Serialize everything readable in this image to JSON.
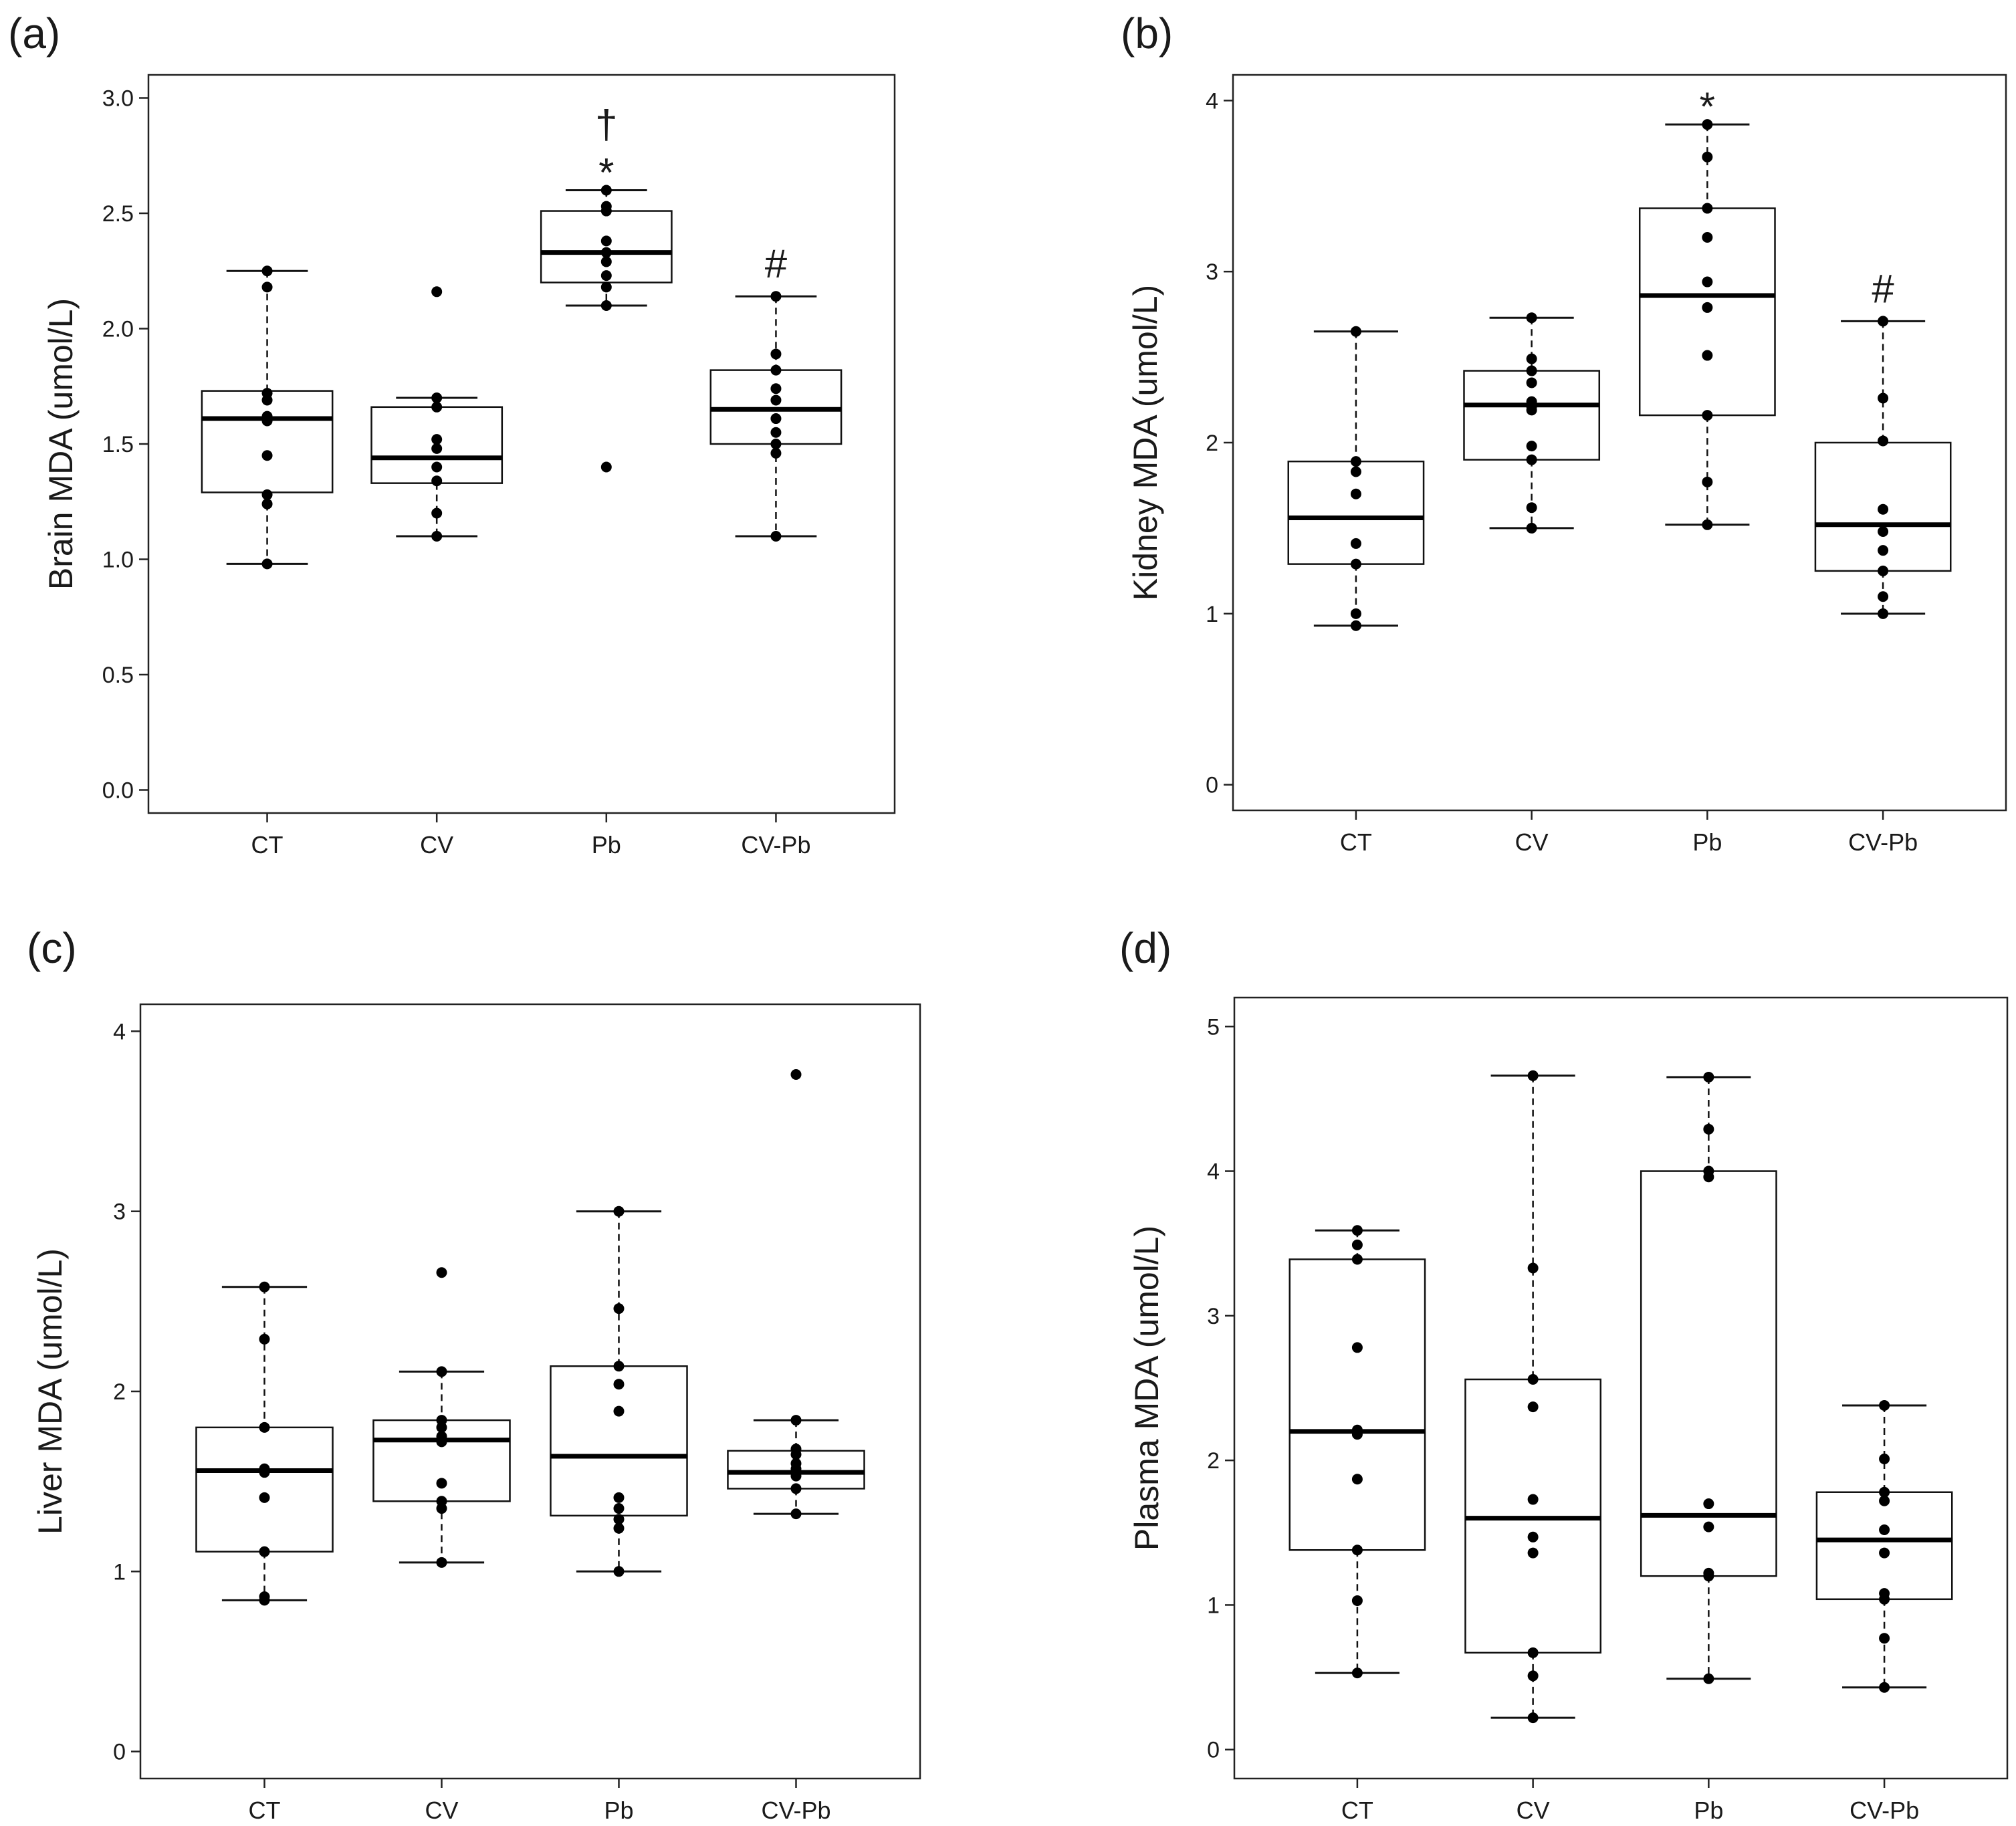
{
  "chart_data": [
    {
      "type": "box",
      "panel_label": "(a)",
      "ylabel": "Brain MDA (umol/L)",
      "ylim": [
        -0.1,
        3.1
      ],
      "yticks": [
        0.0,
        0.5,
        1.0,
        1.5,
        2.0,
        2.5,
        3.0
      ],
      "ytick_labels": [
        "0.0",
        "0.5",
        "1.0",
        "1.5",
        "2.0",
        "2.5",
        "3.0"
      ],
      "categories": [
        "CT",
        "CV",
        "Pb",
        "CV-Pb"
      ],
      "groups": [
        {
          "name": "CT",
          "q1": 1.29,
          "median": 1.61,
          "q3": 1.73,
          "whisker_low": 0.98,
          "whisker_high": 2.25,
          "points": [
            2.25,
            2.18,
            1.72,
            1.69,
            1.62,
            1.6,
            1.45,
            1.28,
            1.24,
            0.98
          ],
          "annotation": []
        },
        {
          "name": "CV",
          "q1": 1.33,
          "median": 1.44,
          "q3": 1.66,
          "whisker_low": 1.1,
          "whisker_high": 1.7,
          "points": [
            2.16,
            1.7,
            1.66,
            1.52,
            1.48,
            1.4,
            1.34,
            1.2,
            1.1
          ],
          "annotation": []
        },
        {
          "name": "Pb",
          "q1": 2.2,
          "median": 2.33,
          "q3": 2.51,
          "whisker_low": 2.1,
          "whisker_high": 2.6,
          "points": [
            2.6,
            2.53,
            2.51,
            2.38,
            2.33,
            2.29,
            2.23,
            2.18,
            2.1,
            1.4
          ],
          "annotation": [
            "†",
            "*"
          ]
        },
        {
          "name": "CV-Pb",
          "q1": 1.5,
          "median": 1.65,
          "q3": 1.82,
          "whisker_low": 1.1,
          "whisker_high": 2.14,
          "points": [
            2.14,
            1.89,
            1.82,
            1.74,
            1.69,
            1.61,
            1.55,
            1.5,
            1.46,
            1.1
          ],
          "annotation": [
            "#"
          ]
        }
      ]
    },
    {
      "type": "box",
      "panel_label": "(b)",
      "ylabel": "Kidney MDA (umol/L)",
      "ylim": [
        -0.15,
        4.15
      ],
      "yticks": [
        0,
        1,
        2,
        3,
        4
      ],
      "ytick_labels": [
        "0",
        "1",
        "2",
        "3",
        "4"
      ],
      "categories": [
        "CT",
        "CV",
        "Pb",
        "CV-Pb"
      ],
      "groups": [
        {
          "name": "CT",
          "q1": 1.29,
          "median": 1.56,
          "q3": 1.89,
          "whisker_low": 0.93,
          "whisker_high": 2.65,
          "points": [
            2.65,
            1.89,
            1.83,
            1.7,
            1.41,
            1.29,
            1.0,
            0.93
          ],
          "annotation": []
        },
        {
          "name": "CV",
          "q1": 1.9,
          "median": 2.22,
          "q3": 2.42,
          "whisker_low": 1.5,
          "whisker_high": 2.73,
          "points": [
            2.73,
            2.49,
            2.42,
            2.35,
            2.24,
            2.21,
            2.19,
            1.98,
            1.9,
            1.62,
            1.5
          ],
          "annotation": []
        },
        {
          "name": "Pb",
          "q1": 2.16,
          "median": 2.86,
          "q3": 3.37,
          "whisker_low": 1.52,
          "whisker_high": 3.86,
          "points": [
            3.86,
            3.67,
            3.37,
            3.2,
            2.94,
            2.79,
            2.51,
            2.16,
            1.77,
            1.52
          ],
          "annotation": [
            "*"
          ]
        },
        {
          "name": "CV-Pb",
          "q1": 1.25,
          "median": 1.52,
          "q3": 2.0,
          "whisker_low": 1.0,
          "whisker_high": 2.71,
          "points": [
            2.71,
            2.26,
            2.01,
            1.61,
            1.48,
            1.37,
            1.25,
            1.1,
            1.0
          ],
          "annotation": [
            "#"
          ]
        }
      ]
    },
    {
      "type": "box",
      "panel_label": "(c)",
      "ylabel": "Liver MDA (umol/L)",
      "ylim": [
        -0.15,
        4.15
      ],
      "yticks": [
        0,
        1,
        2,
        3,
        4
      ],
      "ytick_labels": [
        "0",
        "1",
        "2",
        "3",
        "4"
      ],
      "categories": [
        "CT",
        "CV",
        "Pb",
        "CV-Pb"
      ],
      "groups": [
        {
          "name": "CT",
          "q1": 1.11,
          "median": 1.56,
          "q3": 1.8,
          "whisker_low": 0.84,
          "whisker_high": 2.58,
          "points": [
            2.58,
            2.29,
            1.8,
            1.57,
            1.55,
            1.41,
            1.11,
            0.86,
            0.84
          ],
          "annotation": []
        },
        {
          "name": "CV",
          "q1": 1.39,
          "median": 1.73,
          "q3": 1.84,
          "whisker_low": 1.05,
          "whisker_high": 2.11,
          "points": [
            2.66,
            2.11,
            1.84,
            1.8,
            1.75,
            1.72,
            1.49,
            1.39,
            1.35,
            1.05
          ],
          "annotation": []
        },
        {
          "name": "Pb",
          "q1": 1.31,
          "median": 1.64,
          "q3": 2.14,
          "whisker_low": 1.0,
          "whisker_high": 3.0,
          "points": [
            3.0,
            2.46,
            2.14,
            2.04,
            1.89,
            1.41,
            1.35,
            1.29,
            1.24,
            1.0
          ],
          "annotation": []
        },
        {
          "name": "CV-Pb",
          "q1": 1.46,
          "median": 1.55,
          "q3": 1.67,
          "whisker_low": 1.32,
          "whisker_high": 1.84,
          "points": [
            3.76,
            1.84,
            1.68,
            1.65,
            1.6,
            1.57,
            1.53,
            1.46,
            1.32
          ],
          "annotation": []
        }
      ]
    },
    {
      "type": "box",
      "panel_label": "(d)",
      "ylabel": "Plasma MDA (umol/L)",
      "ylim": [
        -0.2,
        5.2
      ],
      "yticks": [
        0,
        1,
        2,
        3,
        4,
        5
      ],
      "ytick_labels": [
        "0",
        "1",
        "2",
        "3",
        "4",
        "5"
      ],
      "categories": [
        "CT",
        "CV",
        "Pb",
        "CV-Pb"
      ],
      "groups": [
        {
          "name": "CT",
          "q1": 1.38,
          "median": 2.2,
          "q3": 3.39,
          "whisker_low": 0.53,
          "whisker_high": 3.59,
          "points": [
            3.59,
            3.49,
            3.39,
            2.78,
            2.21,
            2.18,
            1.87,
            1.38,
            1.03,
            0.53
          ],
          "annotation": []
        },
        {
          "name": "CV",
          "q1": 0.67,
          "median": 1.6,
          "q3": 2.56,
          "whisker_low": 0.22,
          "whisker_high": 4.66,
          "points": [
            4.66,
            3.33,
            2.56,
            2.37,
            1.73,
            1.47,
            1.36,
            0.67,
            0.51,
            0.22
          ],
          "annotation": []
        },
        {
          "name": "Pb",
          "q1": 1.2,
          "median": 1.62,
          "q3": 4.0,
          "whisker_low": 0.49,
          "whisker_high": 4.65,
          "points": [
            4.65,
            4.29,
            4.0,
            3.96,
            1.7,
            1.54,
            1.22,
            1.2,
            0.49
          ],
          "annotation": []
        },
        {
          "name": "CV-Pb",
          "q1": 1.04,
          "median": 1.45,
          "q3": 1.78,
          "whisker_low": 0.43,
          "whisker_high": 2.38,
          "points": [
            2.38,
            2.01,
            1.78,
            1.72,
            1.52,
            1.36,
            1.08,
            1.04,
            0.77,
            0.43
          ],
          "annotation": []
        }
      ]
    }
  ]
}
